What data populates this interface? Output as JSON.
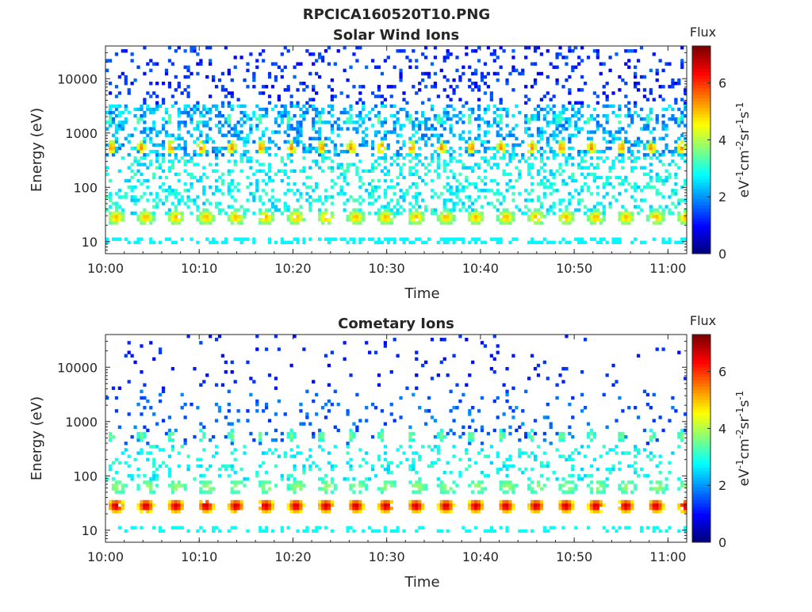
{
  "figure_title": "RPCICA160520T10.PNG",
  "chart_data": [
    {
      "type": "heatmap",
      "title": "Solar Wind Ions",
      "xlabel": "Time",
      "ylabel": "Energy (eV)",
      "x_ticks": [
        "10:00",
        "10:10",
        "10:20",
        "10:30",
        "10:40",
        "10:50",
        "11:00"
      ],
      "xlim": [
        "10:00",
        "11:02"
      ],
      "y_scale": "log",
      "y_ticks": [
        "10",
        "100",
        "1000",
        "10000"
      ],
      "ylim": [
        6,
        40000
      ],
      "colorbar": {
        "title": "Flux",
        "label": "eV-1cm-2sr-1s-1",
        "ticks": [
          "0",
          "2",
          "4",
          "6"
        ],
        "range": [
          0,
          7.3
        ],
        "colormap": "jet"
      },
      "sweep_period_min": 3.2,
      "bands": [
        {
          "name": "solar-wind-peak",
          "energy_eV": 550,
          "flux": 5.0
        },
        {
          "name": "secondary-peak",
          "energy_eV": 1800,
          "flux": 3.3
        },
        {
          "name": "low-energy",
          "energy_eV": 30,
          "flux": 4.0
        }
      ]
    },
    {
      "type": "heatmap",
      "title": "Cometary Ions",
      "xlabel": "Time",
      "ylabel": "Energy (eV)",
      "x_ticks": [
        "10:00",
        "10:10",
        "10:20",
        "10:30",
        "10:40",
        "10:50",
        "11:00"
      ],
      "xlim": [
        "10:00",
        "11:02"
      ],
      "y_scale": "log",
      "y_ticks": [
        "10",
        "100",
        "1000",
        "10000"
      ],
      "ylim": [
        6,
        40000
      ],
      "colorbar": {
        "title": "Flux",
        "label": "eV-1cm-2sr-1s-1",
        "ticks": [
          "0",
          "2",
          "4",
          "6"
        ],
        "range": [
          0,
          7.3
        ],
        "colormap": "jet"
      },
      "sweep_period_min": 3.2,
      "bands": [
        {
          "name": "solar-wind-peak",
          "energy_eV": 550,
          "flux": 3.0
        },
        {
          "name": "cometary-peak",
          "energy_eV": 28,
          "flux": 6.0
        },
        {
          "name": "mid-energy",
          "energy_eV": 60,
          "flux": 3.5
        }
      ]
    }
  ],
  "colors": {
    "axis": "#262626",
    "background": "#ffffff"
  }
}
